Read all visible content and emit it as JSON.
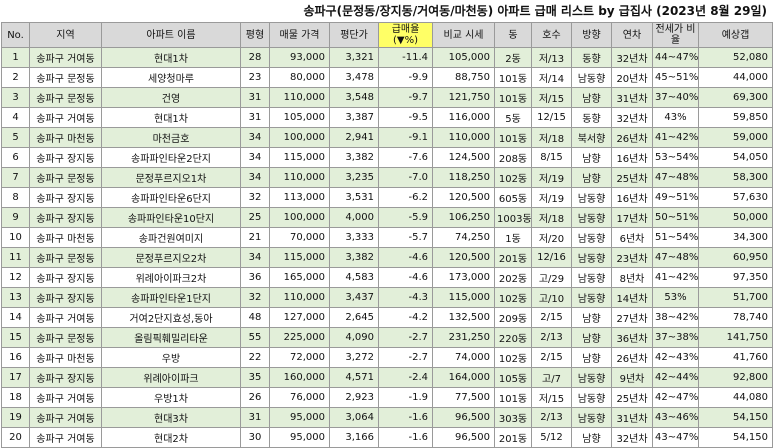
{
  "title": "송파구(문정동/장지동/거여동/마천동) 아파트 급매 리스트 by 급집사 (2023년 8월 29일)",
  "columns": [
    {
      "label": "No."
    },
    {
      "label": "지역"
    },
    {
      "label": "아파트 이름"
    },
    {
      "label": "평형"
    },
    {
      "label": "매물 가격"
    },
    {
      "label": "평단가"
    },
    {
      "label": "급매율 (▼%)"
    },
    {
      "label": "비교 시세"
    },
    {
      "label": "동"
    },
    {
      "label": "호수"
    },
    {
      "label": "방향"
    },
    {
      "label": "연차"
    },
    {
      "label": "전세가 비율"
    },
    {
      "label": "예상갭"
    }
  ],
  "rows": [
    [
      "1",
      "송파구 거여동",
      "현대1차",
      "28",
      "93,000",
      "3,321",
      "-11.4",
      "105,000",
      "2동",
      "저/13",
      "동향",
      "32년차",
      "44~47%",
      "52,080"
    ],
    [
      "2",
      "송파구 문정동",
      "세양청마루",
      "23",
      "80,000",
      "3,478",
      "-9.9",
      "88,750",
      "101동",
      "저/14",
      "남동향",
      "20년차",
      "45~51%",
      "44,000"
    ],
    [
      "3",
      "송파구 문정동",
      "건영",
      "31",
      "110,000",
      "3,548",
      "-9.7",
      "121,750",
      "101동",
      "저/15",
      "남향",
      "31년차",
      "37~40%",
      "69,300"
    ],
    [
      "4",
      "송파구 거여동",
      "현대1차",
      "31",
      "105,000",
      "3,387",
      "-9.5",
      "116,000",
      "5동",
      "12/15",
      "동향",
      "32년차",
      "43%",
      "59,850"
    ],
    [
      "5",
      "송파구 마천동",
      "마천금호",
      "34",
      "100,000",
      "2,941",
      "-9.1",
      "110,000",
      "101동",
      "저/18",
      "북서향",
      "26년차",
      "41~42%",
      "59,000"
    ],
    [
      "6",
      "송파구 장지동",
      "송파파인타운2단지",
      "34",
      "115,000",
      "3,382",
      "-7.6",
      "124,500",
      "208동",
      "8/15",
      "남향",
      "16년차",
      "53~54%",
      "54,050"
    ],
    [
      "7",
      "송파구 문정동",
      "문정푸르지오1차",
      "34",
      "110,000",
      "3,235",
      "-7.0",
      "118,250",
      "102동",
      "저/19",
      "남향",
      "25년차",
      "47~48%",
      "58,300"
    ],
    [
      "8",
      "송파구 장지동",
      "송파파인타운6단지",
      "32",
      "113,000",
      "3,531",
      "-6.2",
      "120,500",
      "605동",
      "저/19",
      "남동향",
      "16년차",
      "49~51%",
      "57,630"
    ],
    [
      "9",
      "송파구 장지동",
      "송파파인타운10단지",
      "25",
      "100,000",
      "4,000",
      "-5.9",
      "106,250",
      "1003동",
      "저/18",
      "남동향",
      "17년차",
      "50~51%",
      "50,000"
    ],
    [
      "10",
      "송파구 마천동",
      "송파건원여미지",
      "21",
      "70,000",
      "3,333",
      "-5.7",
      "74,250",
      "1동",
      "저/20",
      "남동향",
      "6년차",
      "51~54%",
      "34,300"
    ],
    [
      "11",
      "송파구 문정동",
      "문정푸르지오2차",
      "34",
      "115,000",
      "3,382",
      "-4.6",
      "120,500",
      "201동",
      "12/16",
      "남동향",
      "23년차",
      "47~48%",
      "60,950"
    ],
    [
      "12",
      "송파구 장지동",
      "위례아이파크2차",
      "36",
      "165,000",
      "4,583",
      "-4.6",
      "173,000",
      "202동",
      "고/29",
      "남동향",
      "8년차",
      "41~42%",
      "97,350"
    ],
    [
      "13",
      "송파구 장지동",
      "송파파인타운1단지",
      "32",
      "110,000",
      "3,437",
      "-4.3",
      "115,000",
      "102동",
      "고/10",
      "남동향",
      "14년차",
      "53%",
      "51,700"
    ],
    [
      "14",
      "송파구 거여동",
      "거여2단지효성,동아",
      "48",
      "127,000",
      "2,645",
      "-4.2",
      "132,500",
      "209동",
      "2/15",
      "남향",
      "27년차",
      "38~42%",
      "78,740"
    ],
    [
      "15",
      "송파구 문정동",
      "올림픽훼밀리타운",
      "55",
      "225,000",
      "4,090",
      "-2.7",
      "231,250",
      "220동",
      "2/13",
      "남향",
      "36년차",
      "37~38%",
      "141,750"
    ],
    [
      "16",
      "송파구 마천동",
      "우방",
      "22",
      "72,000",
      "3,272",
      "-2.7",
      "74,000",
      "102동",
      "2/15",
      "남향",
      "26년차",
      "42~43%",
      "41,760"
    ],
    [
      "17",
      "송파구 장지동",
      "위례아이파크",
      "35",
      "160,000",
      "4,571",
      "-2.4",
      "164,000",
      "105동",
      "고/7",
      "남동향",
      "9년차",
      "42~44%",
      "92,800"
    ],
    [
      "18",
      "송파구 거여동",
      "우방1차",
      "26",
      "76,000",
      "2,923",
      "-1.9",
      "77,500",
      "101동",
      "저/15",
      "남동향",
      "25년차",
      "42~47%",
      "44,080"
    ],
    [
      "19",
      "송파구 거여동",
      "현대3차",
      "31",
      "95,000",
      "3,064",
      "-1.6",
      "96,500",
      "303동",
      "2/13",
      "남동향",
      "31년차",
      "43~46%",
      "54,150"
    ],
    [
      "20",
      "송파구 거여동",
      "현대2차",
      "30",
      "95,000",
      "3,166",
      "-1.6",
      "96,500",
      "201동",
      "5/12",
      "남향",
      "32년차",
      "43~47%",
      "54,150"
    ]
  ]
}
